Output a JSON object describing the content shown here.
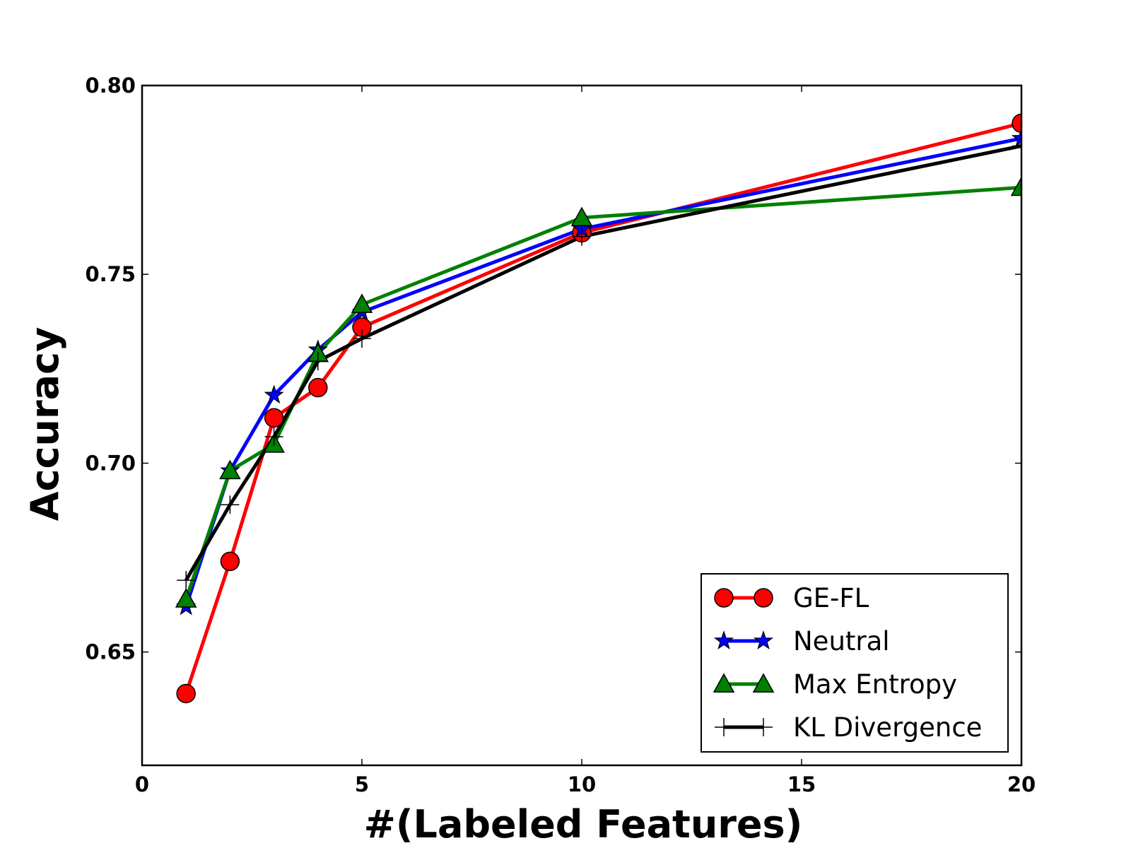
{
  "chart_data": {
    "type": "line",
    "title": "",
    "xlabel": "#(Labeled Features)",
    "ylabel": "Accuracy",
    "xlim": [
      0,
      20
    ],
    "ylim": [
      0.62,
      0.8
    ],
    "xticks": [
      0,
      5,
      10,
      15,
      20
    ],
    "yticks": [
      0.65,
      0.7,
      0.75,
      0.8
    ],
    "xtick_labels": [
      "0",
      "5",
      "10",
      "15",
      "20"
    ],
    "ytick_labels": [
      "0.65",
      "0.70",
      "0.75",
      "0.80"
    ],
    "grid": false,
    "legend_position": "lower-right",
    "x": [
      1,
      2,
      3,
      4,
      5,
      10,
      20
    ],
    "series": [
      {
        "name": "GE-FL",
        "color": "#ff0000",
        "marker": "circle",
        "values": [
          0.639,
          0.674,
          0.712,
          0.72,
          0.736,
          0.761,
          0.79
        ]
      },
      {
        "name": "Neutral",
        "color": "#0000ff",
        "marker": "star",
        "values": [
          0.662,
          0.698,
          0.718,
          0.73,
          0.74,
          0.762,
          0.786
        ]
      },
      {
        "name": "Max Entropy",
        "color": "#008000",
        "marker": "triangle",
        "values": [
          0.664,
          0.698,
          0.705,
          0.729,
          0.742,
          0.765,
          0.773
        ]
      },
      {
        "name": "KL Divergence",
        "color": "#000000",
        "marker": "plus",
        "values": [
          0.669,
          0.689,
          0.707,
          0.727,
          0.733,
          0.76,
          0.784
        ]
      }
    ]
  }
}
